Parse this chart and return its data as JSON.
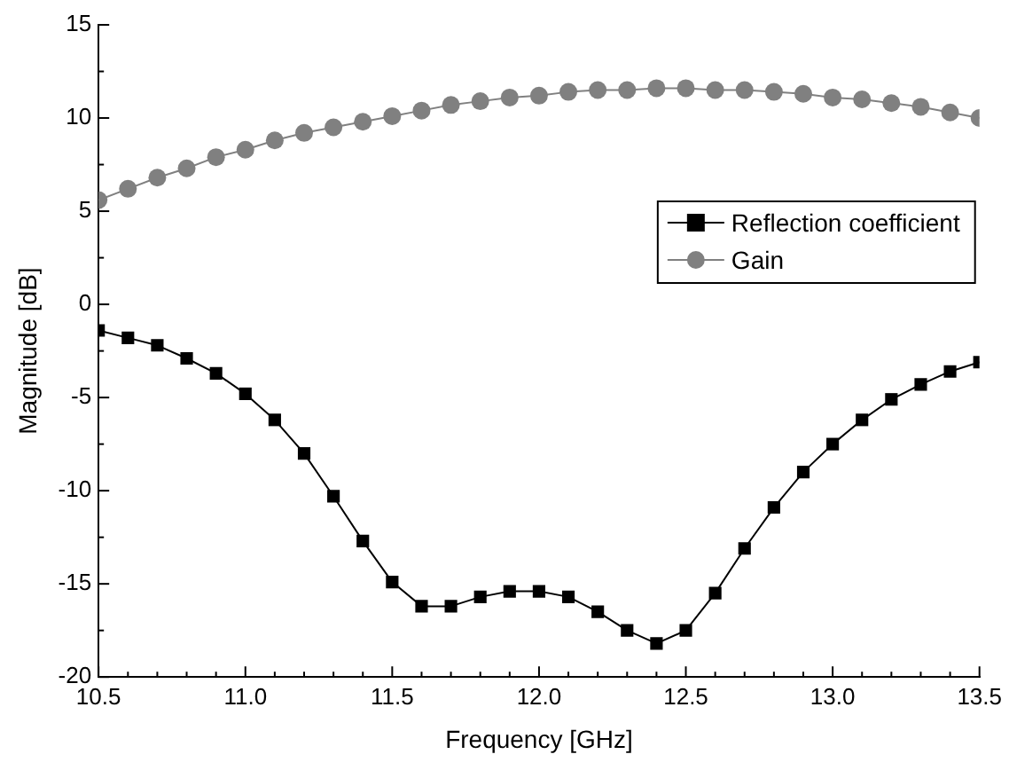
{
  "chart_data": {
    "type": "line",
    "xlabel": "Frequency [GHz]",
    "ylabel": "Magnitude [dB]",
    "x": [
      10.5,
      10.6,
      10.7,
      10.8,
      10.9,
      11.0,
      11.1,
      11.2,
      11.3,
      11.4,
      11.5,
      11.6,
      11.7,
      11.8,
      11.9,
      12.0,
      12.1,
      12.2,
      12.3,
      12.4,
      12.5,
      12.6,
      12.7,
      12.8,
      12.9,
      13.0,
      13.1,
      13.2,
      13.3,
      13.4,
      13.5
    ],
    "series": [
      {
        "name": "Reflection coefficient",
        "color": "#000000",
        "marker": "square",
        "values": [
          -1.4,
          -1.8,
          -2.2,
          -2.9,
          -3.7,
          -4.8,
          -6.2,
          -8.0,
          -10.3,
          -12.7,
          -14.9,
          -16.2,
          -16.2,
          -15.7,
          -15.4,
          -15.4,
          -15.7,
          -16.5,
          -17.5,
          -18.2,
          -17.5,
          -15.5,
          -13.1,
          -10.9,
          -9.0,
          -7.5,
          -6.2,
          -5.1,
          -4.3,
          -3.6,
          -3.1
        ]
      },
      {
        "name": "Gain",
        "color": "#808080",
        "marker": "circle",
        "values": [
          5.6,
          6.2,
          6.8,
          7.3,
          7.9,
          8.3,
          8.8,
          9.2,
          9.5,
          9.8,
          10.1,
          10.4,
          10.7,
          10.9,
          11.1,
          11.2,
          11.4,
          11.5,
          11.5,
          11.6,
          11.6,
          11.5,
          11.5,
          11.4,
          11.3,
          11.1,
          11.0,
          10.8,
          10.6,
          10.3,
          10.0
        ]
      }
    ],
    "xlim": [
      10.5,
      13.5
    ],
    "xticks": [
      {
        "value": 10.5,
        "label": "10.5"
      },
      {
        "value": 10.6,
        "label": null
      },
      {
        "value": 10.7,
        "label": null
      },
      {
        "value": 10.8,
        "label": null
      },
      {
        "value": 10.9,
        "label": null
      },
      {
        "value": 11.0,
        "label": "11.0"
      },
      {
        "value": 11.1,
        "label": null
      },
      {
        "value": 11.2,
        "label": null
      },
      {
        "value": 11.3,
        "label": null
      },
      {
        "value": 11.4,
        "label": null
      },
      {
        "value": 11.5,
        "label": "11.5"
      },
      {
        "value": 11.6,
        "label": null
      },
      {
        "value": 11.7,
        "label": null
      },
      {
        "value": 11.8,
        "label": null
      },
      {
        "value": 11.9,
        "label": null
      },
      {
        "value": 12.0,
        "label": "12.0"
      },
      {
        "value": 12.1,
        "label": null
      },
      {
        "value": 12.2,
        "label": null
      },
      {
        "value": 12.3,
        "label": null
      },
      {
        "value": 12.4,
        "label": null
      },
      {
        "value": 12.5,
        "label": "12.5"
      },
      {
        "value": 12.6,
        "label": null
      },
      {
        "value": 12.7,
        "label": null
      },
      {
        "value": 12.8,
        "label": null
      },
      {
        "value": 12.9,
        "label": null
      },
      {
        "value": 13.0,
        "label": "13.0"
      },
      {
        "value": 13.1,
        "label": null
      },
      {
        "value": 13.2,
        "label": null
      },
      {
        "value": 13.3,
        "label": null
      },
      {
        "value": 13.4,
        "label": null
      },
      {
        "value": 13.5,
        "label": "13.5"
      }
    ],
    "ylim": [
      -20,
      15
    ],
    "yticks": [
      -20,
      {
        "value": -17.5,
        "label": null
      },
      -15,
      {
        "value": -12.5,
        "label": null
      },
      -10,
      {
        "value": -7.5,
        "label": null
      },
      -5,
      {
        "value": -2.5,
        "label": null
      },
      0,
      {
        "value": 2.5,
        "label": null
      },
      5,
      {
        "value": 7.5,
        "label": null
      },
      10,
      {
        "value": 12.5,
        "label": null
      },
      15
    ],
    "grid": false,
    "legend": "top right",
    "line_style": "solid"
  }
}
